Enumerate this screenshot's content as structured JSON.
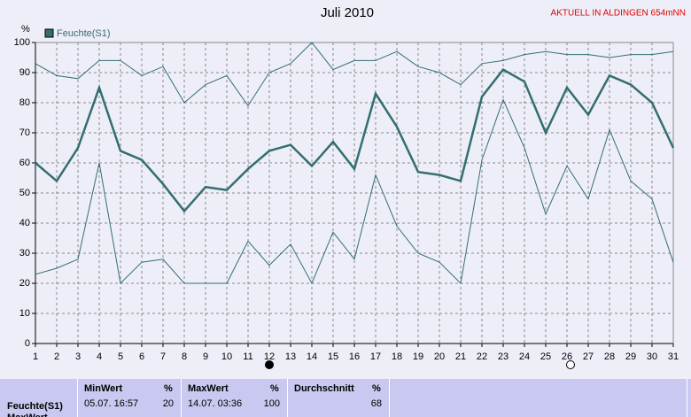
{
  "title": "AKTUELL IN ALDINGEN 654mNN",
  "chart_data": {
    "type": "line",
    "title": "Juli 2010",
    "y_label": "%",
    "legend_title": "Feuchte(S1)",
    "categories": [
      "1",
      "2",
      "3",
      "4",
      "5",
      "6",
      "7",
      "8",
      "9",
      "10",
      "11",
      "12",
      "13",
      "14",
      "15",
      "16",
      "17",
      "18",
      "19",
      "20",
      "21",
      "22",
      "23",
      "24",
      "25",
      "26",
      "27",
      "28",
      "29",
      "30",
      "31"
    ],
    "series": [
      {
        "name": "Feuchte(S1)",
        "color": "#336e70",
        "values": [
          60,
          54,
          65,
          85,
          64,
          61,
          53,
          44,
          52,
          51,
          58,
          64,
          66,
          59,
          67,
          58,
          83,
          72,
          57,
          56,
          54,
          82,
          91,
          87,
          70,
          85,
          76,
          89,
          86,
          80,
          65
        ]
      },
      {
        "color": "#336e70",
        "values": [
          93,
          89,
          88,
          94,
          94,
          89,
          92,
          80,
          86,
          89,
          79,
          90,
          93,
          100,
          91,
          94,
          94,
          97,
          92,
          90,
          86,
          93,
          94,
          96,
          97,
          96,
          96,
          95,
          96,
          96,
          97
        ]
      },
      {
        "color": "#336e70",
        "values": [
          23,
          25,
          28,
          60,
          20,
          27,
          28,
          20,
          20,
          20,
          34,
          26,
          33,
          20,
          37,
          28,
          56,
          39,
          30,
          27,
          20,
          61,
          81,
          65,
          43,
          59,
          48,
          71,
          54,
          48,
          27
        ]
      }
    ],
    "ylim": [
      0,
      100
    ],
    "yticks": [
      0,
      10,
      20,
      30,
      40,
      50,
      60,
      70,
      80,
      90,
      100
    ],
    "grid": true
  },
  "summary": {
    "row_label": "Feuchte(S1)",
    "cut_label": "MaxWert",
    "cells": [
      {
        "heading": "MinWert",
        "unit": "%",
        "time": "05.07. 16:57",
        "value": 20
      },
      {
        "heading": "MaxWert",
        "unit": "%",
        "time": "14.07. 03:36",
        "value": 100
      },
      {
        "heading": "Durchschnitt",
        "unit": "%",
        "value": 68
      }
    ]
  }
}
